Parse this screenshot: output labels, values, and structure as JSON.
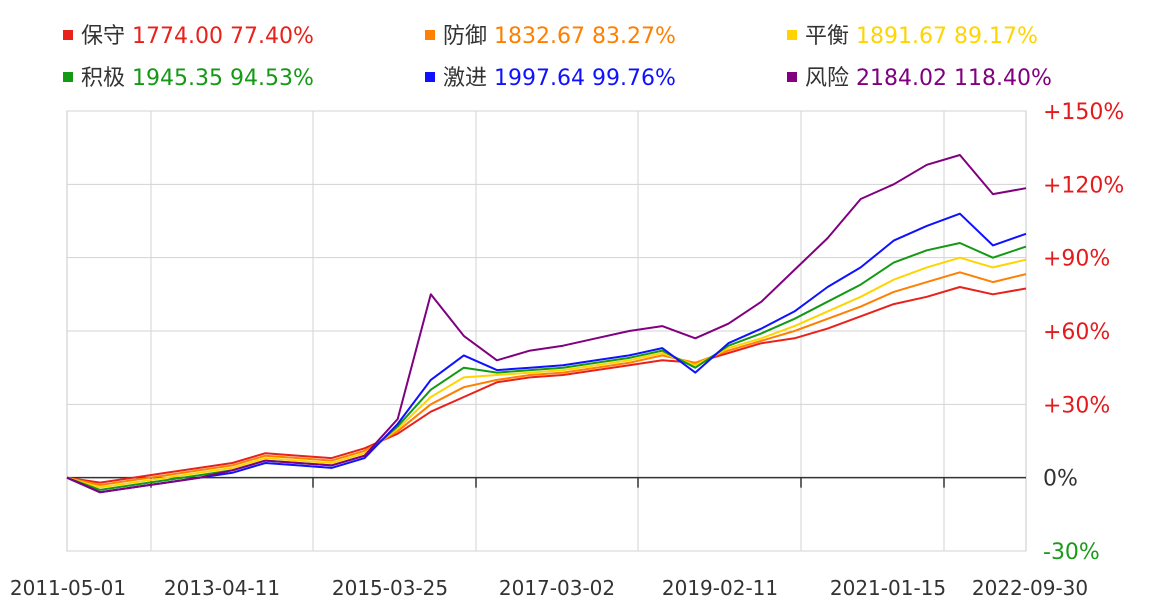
{
  "chart_data": {
    "type": "line",
    "title": "",
    "xlabel": "",
    "ylabel": "",
    "x_ticks": [
      "2011-05-01",
      "2013-04-11",
      "2015-03-25",
      "2017-03-02",
      "2019-02-11",
      "2021-01-15",
      "2022-09-30"
    ],
    "y_ticks": [
      "+150%",
      "+120%",
      "+90%",
      "+60%",
      "+30%",
      "0%",
      "-30%"
    ],
    "ylim": [
      -30,
      150
    ],
    "xlim": [
      "2011-05-01",
      "2022-09-30"
    ],
    "grid": true,
    "legend_position": "top",
    "series": [
      {
        "name": "保守",
        "value": "1774.00",
        "pct": "77.40%",
        "color": "#e8211b",
        "values": [
          0,
          -2,
          0,
          2,
          4,
          6,
          10,
          9,
          8,
          12,
          18,
          27,
          33,
          39,
          41,
          42,
          44,
          46,
          48,
          47,
          51,
          55,
          57,
          61,
          66,
          71,
          74,
          78,
          75,
          77.4
        ]
      },
      {
        "name": "防御",
        "value": "1832.67",
        "pct": "83.27%",
        "color": "#ff7f00",
        "values": [
          0,
          -3,
          -1,
          1,
          3,
          5,
          9,
          8,
          7,
          11,
          19,
          30,
          37,
          40,
          42,
          43,
          45,
          47,
          50,
          47,
          52,
          56,
          60,
          65,
          70,
          76,
          80,
          84,
          80,
          83.27
        ]
      },
      {
        "name": "平衡",
        "value": "1891.67",
        "pct": "89.17%",
        "color": "#ffd400",
        "values": [
          0,
          -4,
          -2,
          0,
          2,
          4,
          8,
          7,
          6,
          10,
          20,
          33,
          41,
          42,
          43,
          44,
          46,
          48,
          51,
          46,
          53,
          57,
          62,
          68,
          74,
          81,
          86,
          90,
          86,
          89.17
        ]
      },
      {
        "name": "积极",
        "value": "1945.35",
        "pct": "94.53%",
        "color": "#149914",
        "values": [
          0,
          -5,
          -3,
          -1,
          1,
          3,
          7,
          6,
          5,
          9,
          21,
          36,
          45,
          43,
          44,
          45,
          47,
          49,
          52,
          45,
          54,
          59,
          65,
          72,
          79,
          88,
          93,
          96,
          90,
          94.53
        ]
      },
      {
        "name": "激进",
        "value": "1997.64",
        "pct": "99.76%",
        "color": "#0f11ff",
        "values": [
          0,
          -6,
          -4,
          -2,
          0,
          2,
          6,
          5,
          4,
          8,
          22,
          40,
          50,
          44,
          45,
          46,
          48,
          50,
          53,
          43,
          55,
          61,
          68,
          78,
          86,
          97,
          103,
          108,
          95,
          99.76
        ]
      },
      {
        "name": "风险",
        "value": "2184.02",
        "pct": "118.40%",
        "color": "#800080",
        "values": [
          0,
          -6,
          -4,
          -2,
          0,
          3,
          7,
          6,
          5,
          9,
          24,
          75,
          58,
          48,
          52,
          54,
          57,
          60,
          62,
          57,
          63,
          72,
          85,
          98,
          114,
          120,
          128,
          132,
          116,
          118.4
        ]
      }
    ]
  }
}
